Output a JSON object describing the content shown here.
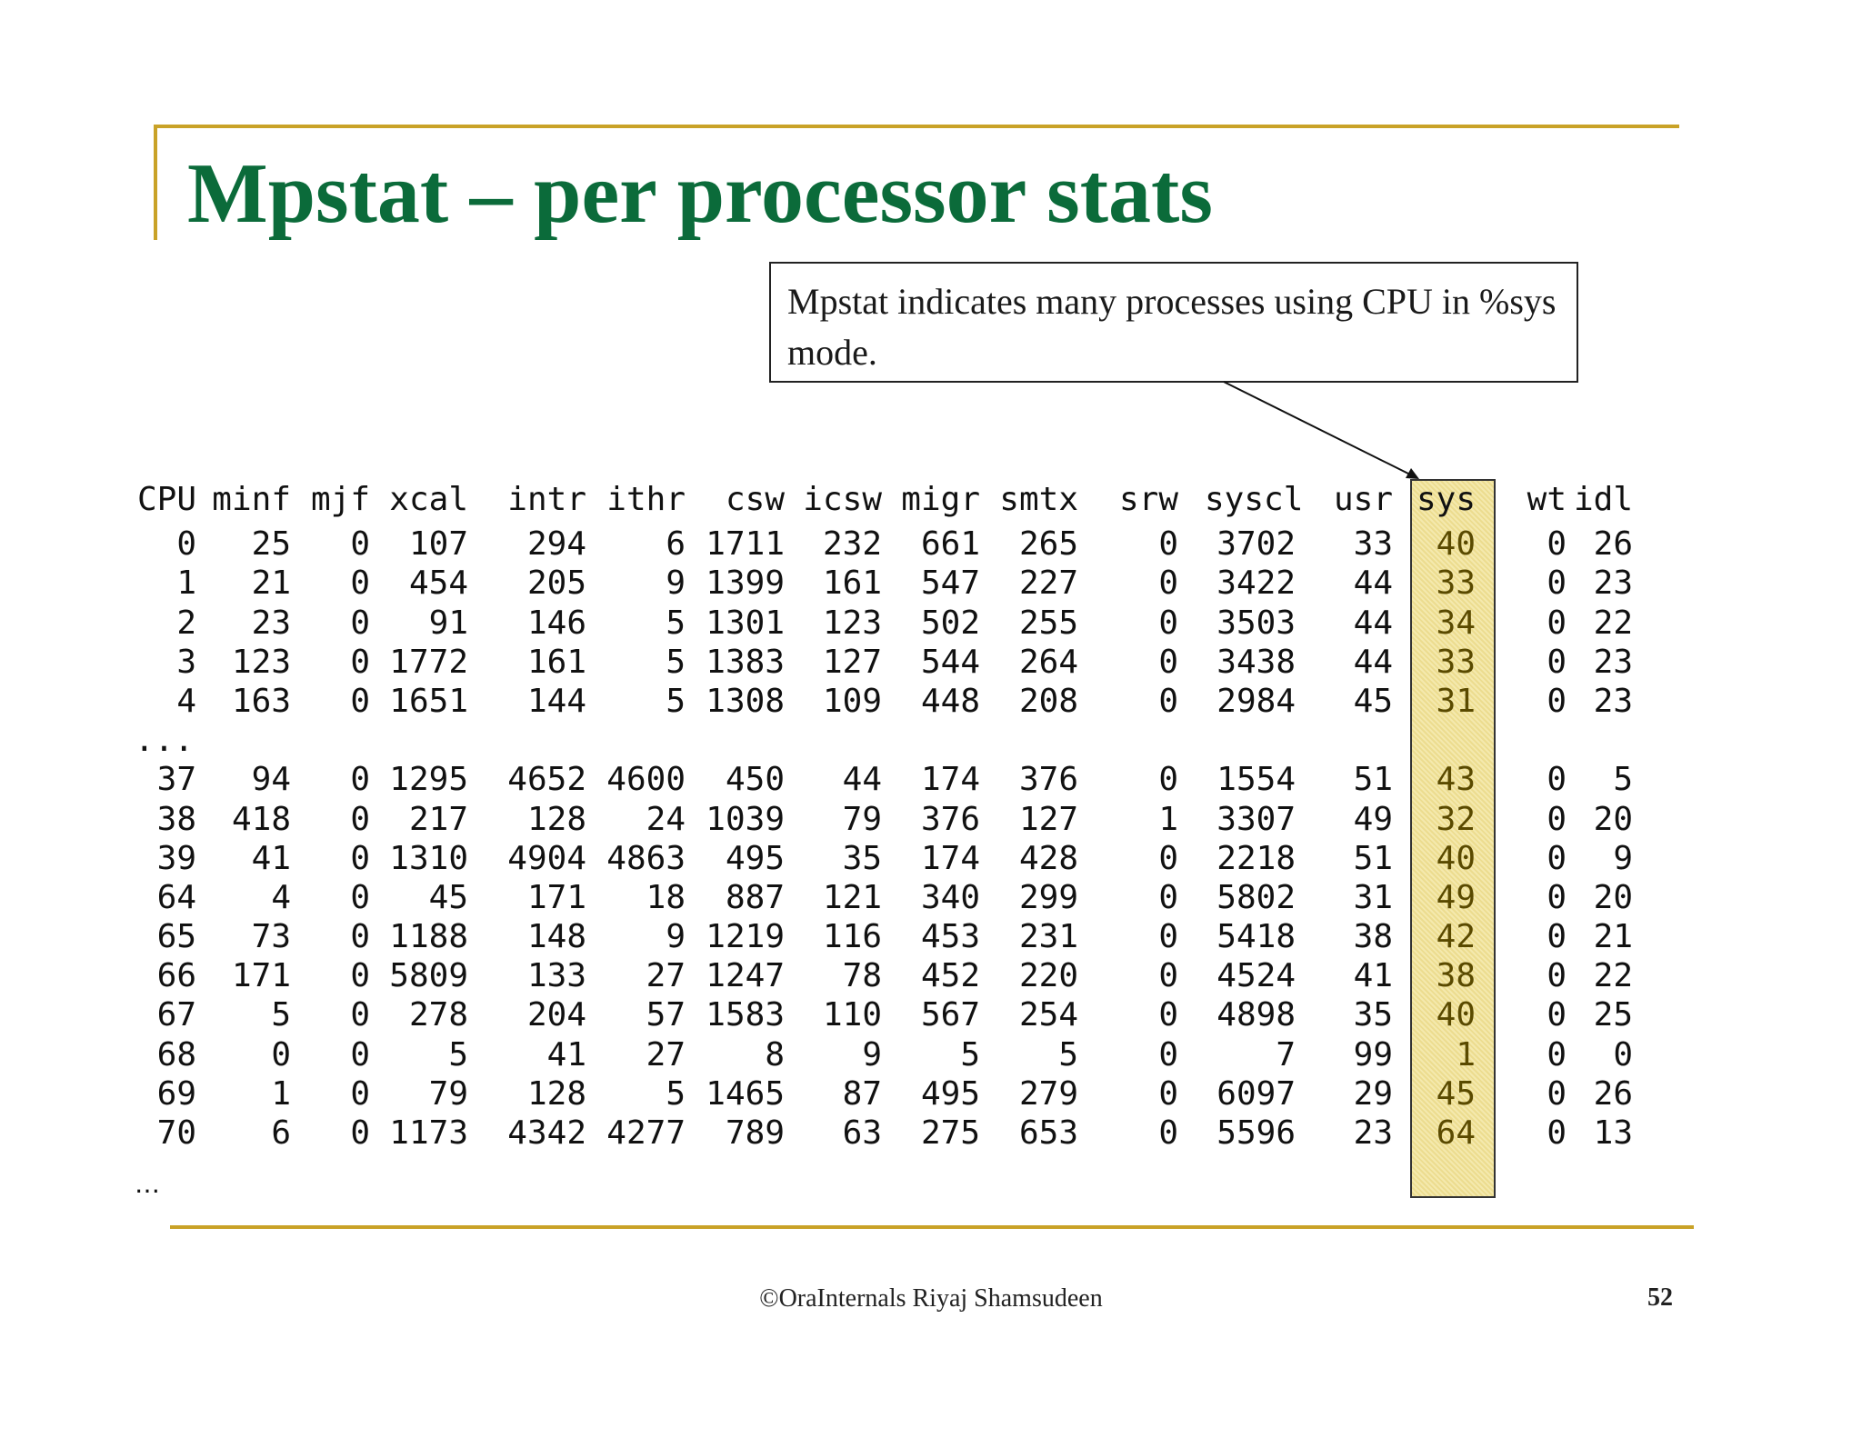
{
  "slide": {
    "title": "Mpstat – per processor stats",
    "callout": "Mpstat indicates many processes using CPU in %sys mode.",
    "footer": "©OraInternals  Riyaj Shamsudeen",
    "page_number": "52",
    "accent_color": "#c9a227",
    "title_color": "#0b6b3a",
    "highlight_color": "#f4e9ad"
  },
  "table": {
    "headers": [
      "CPU",
      "minf",
      "mjf",
      "xcal",
      "intr",
      "ithr",
      "csw",
      "icsw",
      "migr",
      "smtx",
      "srw",
      "syscl",
      "usr",
      "sys",
      "wt",
      "idl"
    ],
    "rows_top": [
      [
        "0",
        "25",
        "0",
        "107",
        "294",
        "6",
        "1711",
        "232",
        "661",
        "265",
        "0",
        "3702",
        "33",
        "40",
        "0",
        "26"
      ],
      [
        "1",
        "21",
        "0",
        "454",
        "205",
        "9",
        "1399",
        "161",
        "547",
        "227",
        "0",
        "3422",
        "44",
        "33",
        "0",
        "23"
      ],
      [
        "2",
        "23",
        "0",
        "91",
        "146",
        "5",
        "1301",
        "123",
        "502",
        "255",
        "0",
        "3503",
        "44",
        "34",
        "0",
        "22"
      ],
      [
        "3",
        "123",
        "0",
        "1772",
        "161",
        "5",
        "1383",
        "127",
        "544",
        "264",
        "0",
        "3438",
        "44",
        "33",
        "0",
        "23"
      ],
      [
        "4",
        "163",
        "0",
        "1651",
        "144",
        "5",
        "1308",
        "109",
        "448",
        "208",
        "0",
        "2984",
        "45",
        "31",
        "0",
        "23"
      ]
    ],
    "gap_marker": "...",
    "rows_bottom": [
      [
        "37",
        "94",
        "0",
        "1295",
        "4652",
        "4600",
        "450",
        "44",
        "174",
        "376",
        "0",
        "1554",
        "51",
        "43",
        "0",
        "5"
      ],
      [
        "38",
        "418",
        "0",
        "217",
        "128",
        "24",
        "1039",
        "79",
        "376",
        "127",
        "1",
        "3307",
        "49",
        "32",
        "0",
        "20"
      ],
      [
        "39",
        "41",
        "0",
        "1310",
        "4904",
        "4863",
        "495",
        "35",
        "174",
        "428",
        "0",
        "2218",
        "51",
        "40",
        "0",
        "9"
      ],
      [
        "64",
        "4",
        "0",
        "45",
        "171",
        "18",
        "887",
        "121",
        "340",
        "299",
        "0",
        "5802",
        "31",
        "49",
        "0",
        "20"
      ],
      [
        "65",
        "73",
        "0",
        "1188",
        "148",
        "9",
        "1219",
        "116",
        "453",
        "231",
        "0",
        "5418",
        "38",
        "42",
        "0",
        "21"
      ],
      [
        "66",
        "171",
        "0",
        "5809",
        "133",
        "27",
        "1247",
        "78",
        "452",
        "220",
        "0",
        "4524",
        "41",
        "38",
        "0",
        "22"
      ],
      [
        "67",
        "5",
        "0",
        "278",
        "204",
        "57",
        "1583",
        "110",
        "567",
        "254",
        "0",
        "4898",
        "35",
        "40",
        "0",
        "25"
      ],
      [
        "68",
        "0",
        "0",
        "5",
        "41",
        "27",
        "8",
        "9",
        "5",
        "5",
        "0",
        "7",
        "99",
        "1",
        "0",
        "0"
      ],
      [
        "69",
        "1",
        "0",
        "79",
        "128",
        "5",
        "1465",
        "87",
        "495",
        "279",
        "0",
        "6097",
        "29",
        "45",
        "0",
        "26"
      ],
      [
        "70",
        "6",
        "0",
        "1173",
        "4342",
        "4277",
        "789",
        "63",
        "275",
        "653",
        "0",
        "5596",
        "23",
        "64",
        "0",
        "13"
      ]
    ],
    "end_marker": "…"
  }
}
